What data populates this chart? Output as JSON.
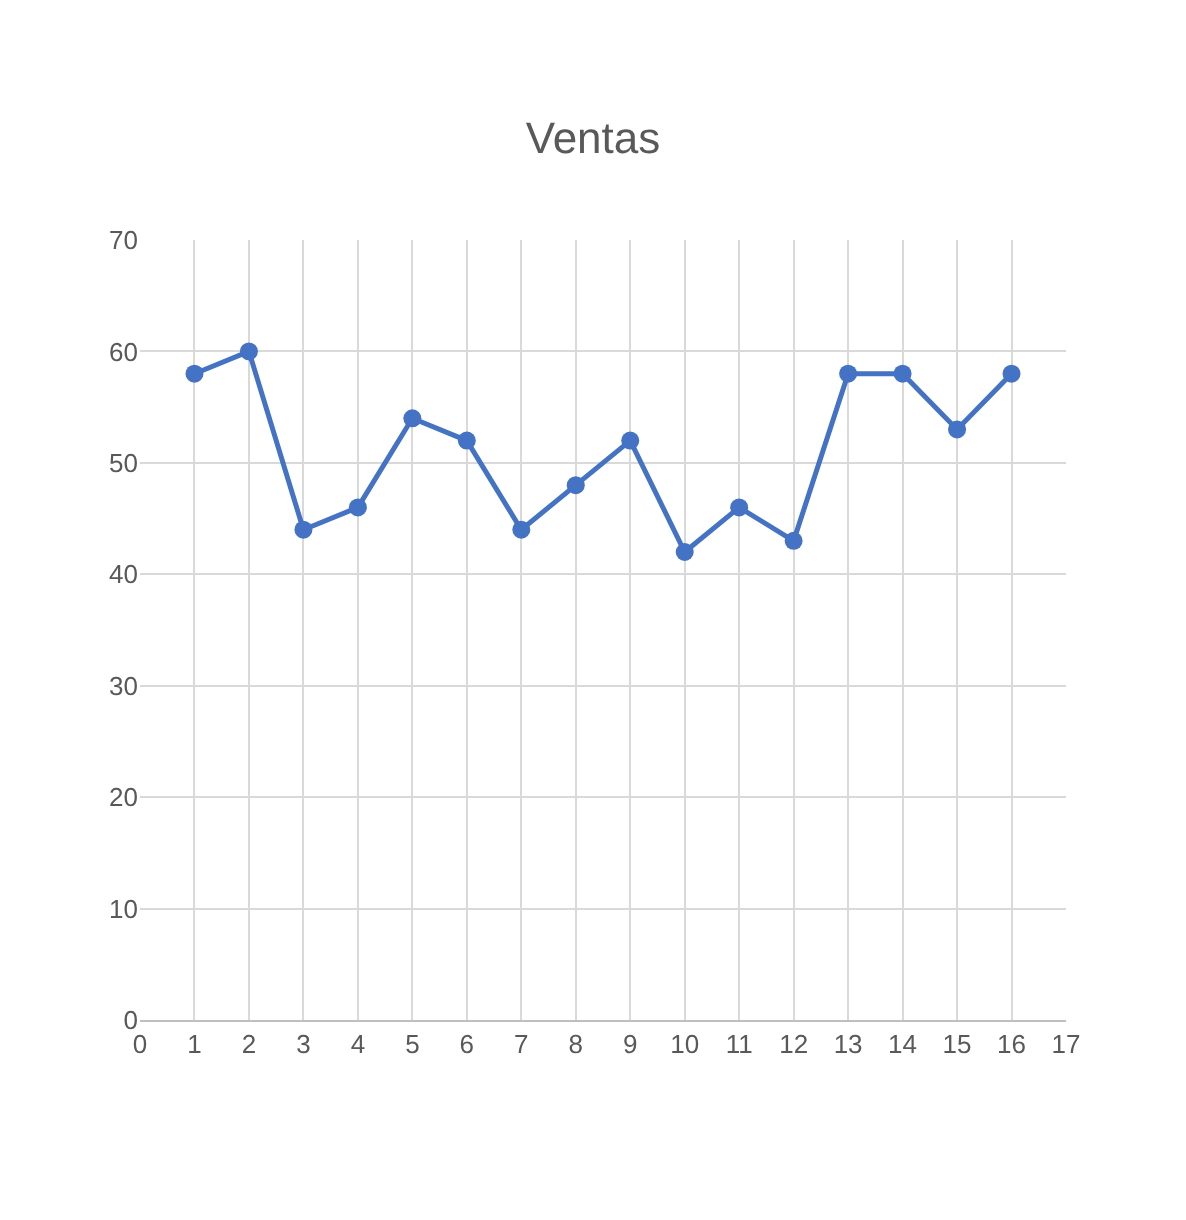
{
  "chart_data": {
    "type": "line",
    "title": "Ventas",
    "x": [
      1,
      2,
      3,
      4,
      5,
      6,
      7,
      8,
      9,
      10,
      11,
      12,
      13,
      14,
      15,
      16
    ],
    "series": [
      {
        "color": "#4472c4",
        "values": [
          58,
          60,
          44,
          46,
          54,
          52,
          44,
          48,
          52,
          42,
          46,
          43,
          58,
          58,
          53,
          58
        ]
      }
    ],
    "xlim": [
      0,
      17
    ],
    "xticks": [
      0,
      1,
      2,
      3,
      4,
      5,
      6,
      7,
      8,
      9,
      10,
      11,
      12,
      13,
      14,
      15,
      16,
      17
    ],
    "ylim": [
      0,
      70
    ],
    "yticks": [
      0,
      10,
      20,
      30,
      40,
      50,
      60,
      70
    ],
    "grid": true,
    "marker": "circle",
    "line_style": "solid"
  }
}
